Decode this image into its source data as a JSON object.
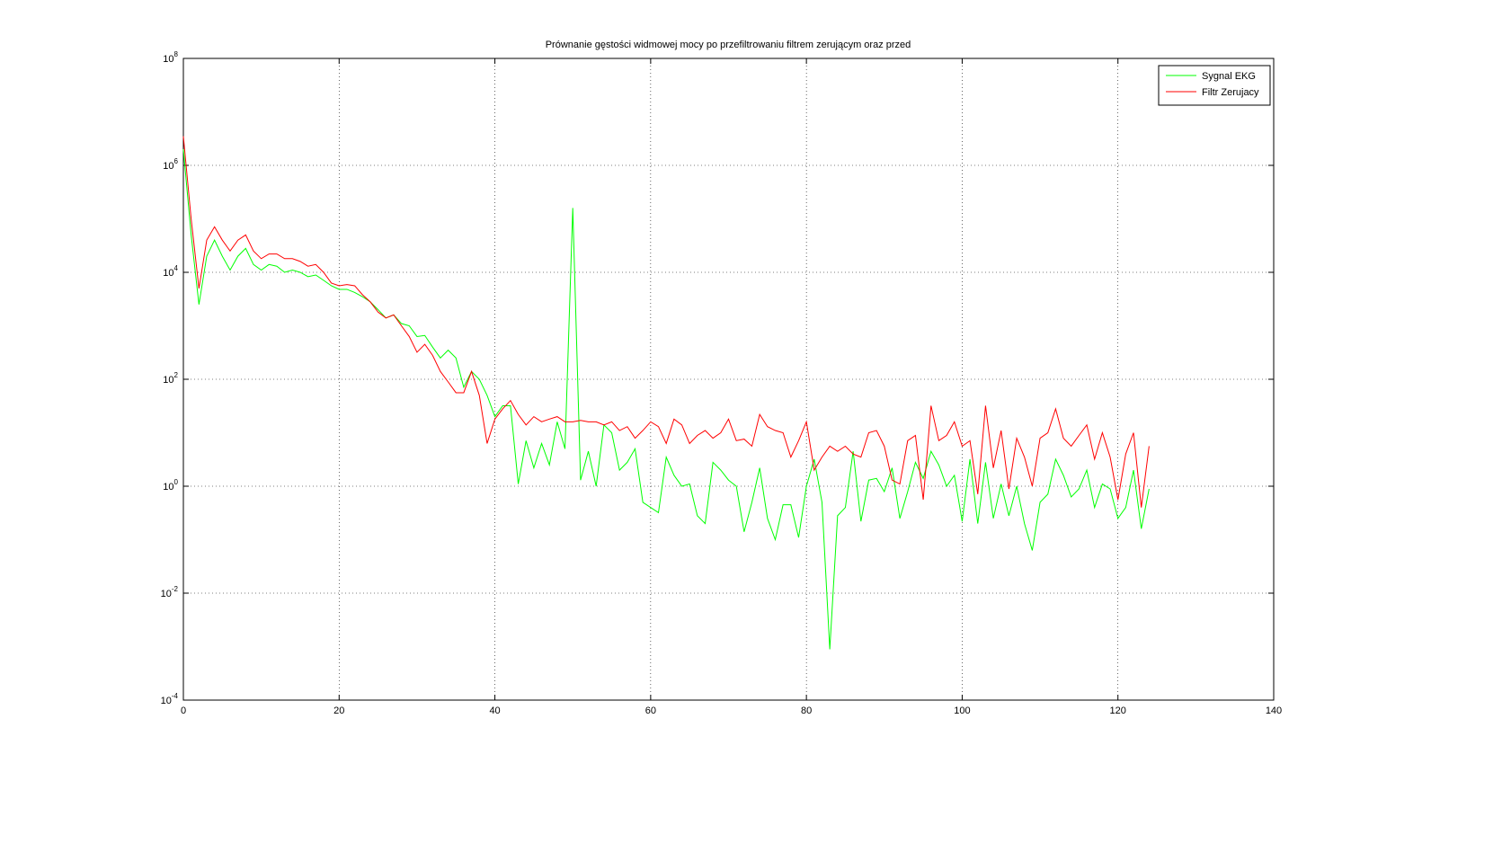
{
  "chart_data": {
    "type": "line",
    "title": "Prównanie gęstości widmowej mocy po przefiltrowaniu filtrem zerującym oraz przed",
    "x": [
      0,
      1,
      2,
      3,
      4,
      5,
      6,
      7,
      8,
      9,
      10,
      11,
      12,
      13,
      14,
      15,
      16,
      17,
      18,
      19,
      20,
      21,
      22,
      23,
      24,
      25,
      26,
      27,
      28,
      29,
      30,
      31,
      32,
      33,
      34,
      35,
      36,
      37,
      38,
      39,
      40,
      41,
      42,
      43,
      44,
      45,
      46,
      47,
      48,
      49,
      50,
      51,
      52,
      53,
      54,
      55,
      56,
      57,
      58,
      59,
      60,
      61,
      62,
      63,
      64,
      65,
      66,
      67,
      68,
      69,
      70,
      71,
      72,
      73,
      74,
      75,
      76,
      77,
      78,
      79,
      80,
      81,
      82,
      83,
      84,
      85,
      86,
      87,
      88,
      89,
      90,
      91,
      92,
      93,
      94,
      95,
      96,
      97,
      98,
      99,
      100,
      101,
      102,
      103,
      104,
      105,
      106,
      107,
      108,
      109,
      110,
      111,
      112,
      113,
      114,
      115,
      116,
      117,
      118,
      119,
      120,
      121,
      122,
      123,
      124
    ],
    "series": [
      {
        "name": "Sygnal EKG",
        "color": "#00ff00",
        "values": [
          2000000.0,
          50000.0,
          2500.0,
          20000.0,
          40000.0,
          20000.0,
          11000.0,
          20000.0,
          28000.0,
          14000.0,
          11000.0,
          14000.0,
          13000.0,
          10000.0,
          11000.0,
          10000.0,
          8300.0,
          8900.0,
          7100.0,
          5600.0,
          4800.0,
          4800.0,
          4200.0,
          3500.0,
          2800.0,
          2000.0,
          1400.0,
          1600.0,
          1100.0,
          1000.0,
          630,
          660,
          400,
          250,
          350,
          250,
          71,
          140,
          100,
          50,
          20,
          32,
          32,
          1.1,
          7.1,
          2.2,
          6.3,
          2.5,
          16,
          5,
          160000.0,
          1.3,
          4.5,
          1,
          14,
          10,
          2,
          2.8,
          5,
          0.5,
          0.4,
          0.32,
          3.5,
          1.6,
          1,
          1.1,
          0.28,
          0.2,
          2.8,
          2,
          1.3,
          1,
          0.14,
          0.5,
          2.2,
          0.25,
          0.1,
          0.45,
          0.45,
          0.11,
          1,
          3.2,
          0.5,
          0.00089,
          0.28,
          0.4,
          4.5,
          0.22,
          1.3,
          1.4,
          0.79,
          2.2,
          0.25,
          0.79,
          2.8,
          1.4,
          4.5,
          2.5,
          1,
          1.6,
          0.22,
          3.2,
          0.2,
          2.8,
          0.25,
          1.1,
          0.28,
          1,
          0.2,
          0.063,
          0.5,
          0.71,
          3.2,
          1.6,
          0.63,
          0.89,
          2,
          0.4,
          1.1,
          0.89,
          0.25,
          0.4,
          2,
          0.16,
          0.89
        ]
      },
      {
        "name": "Filtr Zerujacy",
        "color": "#ff0000",
        "values": [
          3500000.0,
          100000.0,
          5000.0,
          40000.0,
          71000.0,
          40000.0,
          25000.0,
          40000.0,
          50000.0,
          25000.0,
          18000.0,
          22000.0,
          22000.0,
          18000.0,
          18000.0,
          16000.0,
          13000.0,
          14000.0,
          10000.0,
          6300.0,
          5600.0,
          5900.0,
          5600.0,
          3800.0,
          2800.0,
          1800.0,
          1400.0,
          1600.0,
          1000.0,
          630,
          320,
          450,
          280,
          140,
          89,
          56,
          56,
          140,
          50,
          6.3,
          18,
          28,
          40,
          22,
          14,
          20,
          16,
          18,
          20,
          16,
          16,
          17,
          16,
          16,
          14,
          16,
          11,
          13,
          7.9,
          11,
          16,
          13,
          6.3,
          18,
          14,
          6.3,
          8.9,
          11,
          7.9,
          10,
          18,
          7.1,
          7.6,
          5.6,
          22,
          13,
          11,
          10,
          3.5,
          7.1,
          16,
          2,
          3.5,
          5.6,
          4.5,
          5.6,
          4,
          3.5,
          10,
          11,
          5.6,
          1.3,
          1.1,
          7.1,
          8.9,
          0.56,
          32,
          7.1,
          8.9,
          16,
          5.6,
          7.1,
          0.71,
          32,
          2.2,
          11,
          0.89,
          7.9,
          3.5,
          1,
          7.9,
          10,
          28,
          7.9,
          5.6,
          8.9,
          14,
          3.2,
          10,
          3.5,
          0.56,
          4,
          10,
          0.4,
          5.6
        ]
      }
    ],
    "xlim": [
      0,
      140
    ],
    "xticks": [
      0,
      20,
      40,
      60,
      80,
      100,
      120,
      140
    ],
    "ylim": [
      0.0001,
      100000000
    ],
    "ylog": true,
    "yticks": [
      {
        "value": 0.0001,
        "label": "10^-4"
      },
      {
        "value": 0.01,
        "label": "10^-2"
      },
      {
        "value": 1,
        "label": "10^0"
      },
      {
        "value": 100,
        "label": "10^2"
      },
      {
        "value": 10000,
        "label": "10^4"
      },
      {
        "value": 1000000,
        "label": "10^6"
      },
      {
        "value": 100000000,
        "label": "10^8"
      }
    ],
    "grid": true,
    "legend": "northeast"
  }
}
